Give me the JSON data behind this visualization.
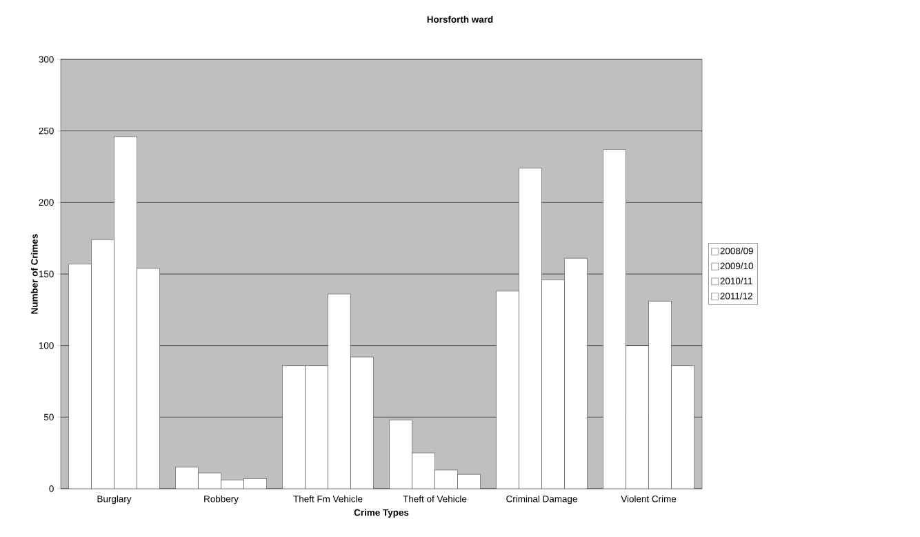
{
  "chart_data": {
    "type": "bar",
    "title": "Horsforth ward",
    "xlabel": "Crime Types",
    "ylabel": "Number of Crimes",
    "categories": [
      "Burglary",
      "Robbery",
      "Theft Fm Vehicle",
      "Theft of Vehicle",
      "Criminal Damage",
      "Violent Crime"
    ],
    "series": [
      {
        "name": "2008/09",
        "color": "#ffffff",
        "values": [
          157,
          15,
          86,
          48,
          138,
          237
        ]
      },
      {
        "name": "2009/10",
        "color": "#ffffff",
        "values": [
          174,
          11,
          86,
          25,
          224,
          100
        ]
      },
      {
        "name": "2010/11",
        "color": "#ffffff",
        "values": [
          246,
          6,
          136,
          13,
          146,
          131
        ]
      },
      {
        "name": "2011/12",
        "color": "#ffffff",
        "values": [
          154,
          7,
          92,
          10,
          161,
          86
        ]
      }
    ],
    "ylim": [
      0,
      300
    ],
    "yticks": [
      0,
      50,
      100,
      150,
      200,
      250,
      300
    ],
    "grid": "y",
    "legend": "right"
  }
}
